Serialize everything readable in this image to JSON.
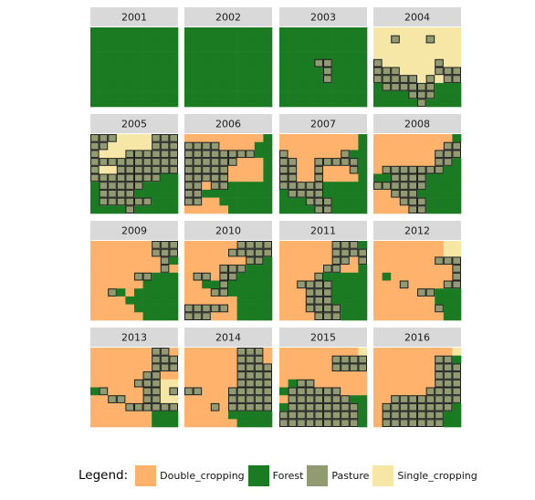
{
  "chart_data": {
    "type": "heatmap",
    "grid_size": [
      10,
      10
    ],
    "colors": {
      "Double_cropping": "#FEB26B",
      "Forest": "#1B7B23",
      "Pasture": "#929A72",
      "Single_cropping": "#F6E7A6",
      "strip": "#D9D9D9"
    },
    "code_key": {
      "D": "Double_cropping",
      "F": "Forest",
      "P": "Pasture",
      "S": "Single_cropping"
    },
    "panels": [
      {
        "year": "2001",
        "rows": [
          "FFFFFFFFFF",
          "FFFFFFFFFF",
          "FFFFFFFFFF",
          "FFFFFFFFFF",
          "FFFFFFFFFF",
          "FFFFFFFFFF",
          "FFFFFFFFFF",
          "FFFFFFFFFF",
          "FFFFFFFFFF",
          "FFFFFFFFFF"
        ]
      },
      {
        "year": "2002",
        "rows": [
          "FFFFFFFFFF",
          "FFFFFFFFFF",
          "FFFFFFFFFF",
          "FFFFFFFFFF",
          "FFFFFFFFFF",
          "FFFFFFFFFF",
          "FFFFFFFFFF",
          "FFFFFFFFFF",
          "FFFFFFFFFF",
          "FFFFFFFFFF"
        ]
      },
      {
        "year": "2003",
        "rows": [
          "FFFFFFFFFF",
          "FFFFFFFFFF",
          "FFFFFFFFFF",
          "FFFFFFFFFF",
          "FFFFPPFFFF",
          "FFFFFPFFFF",
          "FFFFFPFFFF",
          "FFFFFFFFFF",
          "FFFFFFFFFF",
          "FFFFFFFFFF"
        ]
      },
      {
        "year": "2004",
        "rows": [
          "SSSSSSSSSS",
          "SSPSSSPSSS",
          "SSSSSSSSSS",
          "SSSSSSSSSS",
          "PSSSSSSPSS",
          "PPPSSSSPPP",
          "PPPPPSPSPP",
          "FPPPPPPFFF",
          "FFFFPPPFFF",
          "FFFFFPFFFF"
        ]
      },
      {
        "year": "2005",
        "rows": [
          "PPPSSSSPPP",
          "PPSSSSSPPP",
          "PSSSPPPPPP",
          "PPPPPPPPPP",
          "PSSPPPPPPP",
          "PPPPPPPPFF",
          "FPPPPPFFFF",
          "FPPPPFFFFF",
          "FPPPPPPFFF",
          "FFFFPFFFFF"
        ]
      },
      {
        "year": "2006",
        "rows": [
          "DDDDDDDDDF",
          "PPPPDDDDFF",
          "PPPPPPPPFF",
          "PPPPPPDDDF",
          "PPPPPDDDDF",
          "PPPPPDDDDF",
          "PPDPPFFFFF",
          "PPFFFFFFFF",
          "PPDDFFFFFF",
          "DDDDDFFFFF"
        ]
      },
      {
        "year": "2007",
        "rows": [
          "DDDDDDDDDF",
          "DDDDDDDDDF",
          "PDDDDDDPFF",
          "PPDDPPPPPF",
          "PPDDPDDDPF",
          "PPDDPDDDDF",
          "PPPPPFFFFF",
          "FPPPPFFFFF",
          "FFFPPPFFFF",
          "FFFFPPFFFF"
        ]
      },
      {
        "year": "2008",
        "rows": [
          "DDDDDDDDDF",
          "DDDDDDDDPP",
          "DDDDDDDPPP",
          "DDDDDDDPPF",
          "DPPPPPPPFF",
          "FFPPPPFFFF",
          "PPPPPPFFFF",
          "DDPPPFFFFF",
          "DDDPPPFFFF",
          "DDDDPPFFFF"
        ]
      },
      {
        "year": "2009",
        "rows": [
          "DDDDDDDPPP",
          "DDDDDDDPPP",
          "DDDDDDDDPF",
          "DDDDDDDDPD",
          "DDDDDPPFFF",
          "DDDDDDFFFF",
          "DDPFDFFFFF",
          "DDDDFFFFFF",
          "DDDDDFFFFF",
          "DDDDDDFFFF"
        ]
      },
      {
        "year": "2010",
        "rows": [
          "DDDDDDPPPP",
          "DDDDDPPPPP",
          "DDDDDDDPPF",
          "DDDDPPPFFF",
          "DPPDPPFFFF",
          "DDFFPFFFFF",
          "DDDPPFFFFF",
          "DDDDDDFFFF",
          "PPPPPDFFFF",
          "PPPDDDFFFF"
        ]
      },
      {
        "year": "2011",
        "rows": [
          "DDDDDDPPPF",
          "DDDDDDPPPP",
          "DDDDDDPPDP",
          "DDDDDPPDDF",
          "DDDDPFFFFF",
          "DDPPPPFFFF",
          "DDDPPPFFFF",
          "DDDPPPFFFF",
          "DDDPPPPFFF",
          "DDDDPPPFFF"
        ]
      },
      {
        "year": "2012",
        "rows": [
          "DDDDDDDDSS",
          "DDDDDDDDSS",
          "DDDDDDDPPP",
          "DDDDDDDDDP",
          "DFDDDDDDDP",
          "DDDPDDDDPP",
          "DDDDDPPFFF",
          "DDDDDDDFFF",
          "DDDDDDDPFF",
          "DDDDDDDDFF"
        ]
      },
      {
        "year": "2013",
        "rows": [
          "DDDDDDDPPD",
          "DDDDDDDPPP",
          "DDDDDDDPPP",
          "DDDDDDPPDD",
          "DDDDDPPPSS",
          "FPDDDDPPSP",
          "DDPPDDPPSS",
          "DDDDPPPPPP",
          "DDDDDDDFFF",
          "DDDDDDDFFF"
        ]
      },
      {
        "year": "2014",
        "rows": [
          "DDDDDDPPPD",
          "DDDDDDPPPD",
          "DDDDDDPPPP",
          "DDDDDDPPPP",
          "DDDDDDPPPP",
          "PPDDDPPPPP",
          "DDDDDPPPPP",
          "DDDPDPPPPP",
          "DDDDDFFFFF",
          "DDDDDDFFFF"
        ]
      },
      {
        "year": "2015",
        "rows": [
          "DDDDDDDDDS",
          "DDDDDDPPPP",
          "DDDDDDPPPP",
          "DDDDDDDDDD",
          "DFPPDDDDDD",
          "FPPPPPPDDD",
          "DPPPPPPPFF",
          "FPPPPPPPPF",
          "PPPPPPPPPF",
          "PPPPPPPPPF"
        ]
      },
      {
        "year": "2016",
        "rows": [
          "DDDDDDDDDS",
          "DDDDDDDPPF",
          "DDDDDDDPPP",
          "DDDDDDDPPP",
          "DDDDDDDPPP",
          "DDDDDDPPPP",
          "DDPPPPPPPP",
          "DPPPPPPPPF",
          "DPPPPPPPFF",
          "DPPPPPPPFF"
        ]
      }
    ]
  },
  "legend": {
    "title": "Legend:",
    "items": [
      {
        "label": "Double_cropping",
        "color": "#FEB26B"
      },
      {
        "label": "Forest",
        "color": "#1B7B23"
      },
      {
        "label": "Pasture",
        "color": "#929A72"
      },
      {
        "label": "Single_cropping",
        "color": "#F6E7A6"
      }
    ]
  }
}
